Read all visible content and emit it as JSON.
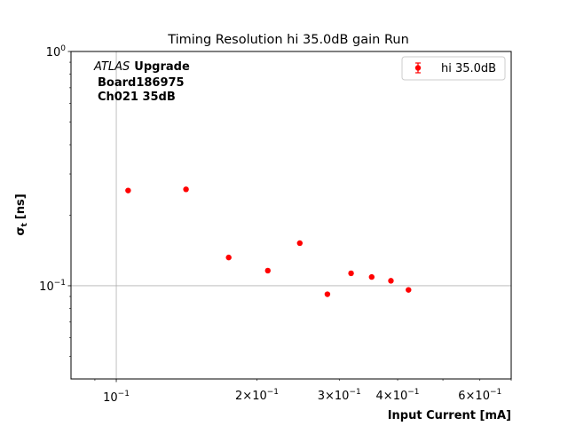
{
  "chart_data": {
    "type": "scatter",
    "title": "Timing Resolution hi 35.0dB gain Run",
    "xlabel": "Input Current [mA]",
    "ylabel_main": "σ",
    "ylabel_sub": "t",
    "ylabel_unit": "[ns]",
    "x_scale": "log",
    "y_scale": "log",
    "xlim": [
      0.08,
      0.7
    ],
    "ylim": [
      0.04,
      1.0
    ],
    "x_major_ticks": [
      {
        "value": 0.1,
        "mantissa": "",
        "base": "10",
        "exp": "−1"
      }
    ],
    "x_minor_labeled_ticks": [
      {
        "value": 0.2,
        "mantissa": "2×",
        "base": "10",
        "exp": "−1"
      },
      {
        "value": 0.3,
        "mantissa": "3×",
        "base": "10",
        "exp": "−1"
      },
      {
        "value": 0.4,
        "mantissa": "4×",
        "base": "10",
        "exp": "−1"
      },
      {
        "value": 0.6,
        "mantissa": "6×",
        "base": "10",
        "exp": "−1"
      }
    ],
    "x_minor_unlabeled_ticks": [
      0.09,
      0.5,
      0.7
    ],
    "y_major_ticks": [
      {
        "value": 0.1,
        "base": "10",
        "exp": "−1"
      },
      {
        "value": 1.0,
        "base": "10",
        "exp": "0"
      }
    ],
    "y_minor_ticks": [
      0.05,
      0.06,
      0.07,
      0.08,
      0.09,
      0.2,
      0.3,
      0.4,
      0.5,
      0.6,
      0.7,
      0.8,
      0.9
    ],
    "grid": {
      "major": true
    },
    "legend": {
      "position": "top-right",
      "label": "hi 35.0dB"
    },
    "annotation": {
      "atlas": "ATLAS",
      "upgrade": "Upgrade",
      "line2": "Board186975",
      "line3": "Ch021 35dB"
    },
    "series": [
      {
        "name": "hi 35.0dB",
        "color": "#ff0000",
        "points": [
          {
            "x": 0.106,
            "y": 0.255
          },
          {
            "x": 0.141,
            "y": 0.258
          },
          {
            "x": 0.174,
            "y": 0.132
          },
          {
            "x": 0.211,
            "y": 0.116
          },
          {
            "x": 0.247,
            "y": 0.152
          },
          {
            "x": 0.283,
            "y": 0.092
          },
          {
            "x": 0.318,
            "y": 0.113
          },
          {
            "x": 0.352,
            "y": 0.109
          },
          {
            "x": 0.387,
            "y": 0.105
          },
          {
            "x": 0.422,
            "y": 0.096
          }
        ]
      }
    ]
  }
}
